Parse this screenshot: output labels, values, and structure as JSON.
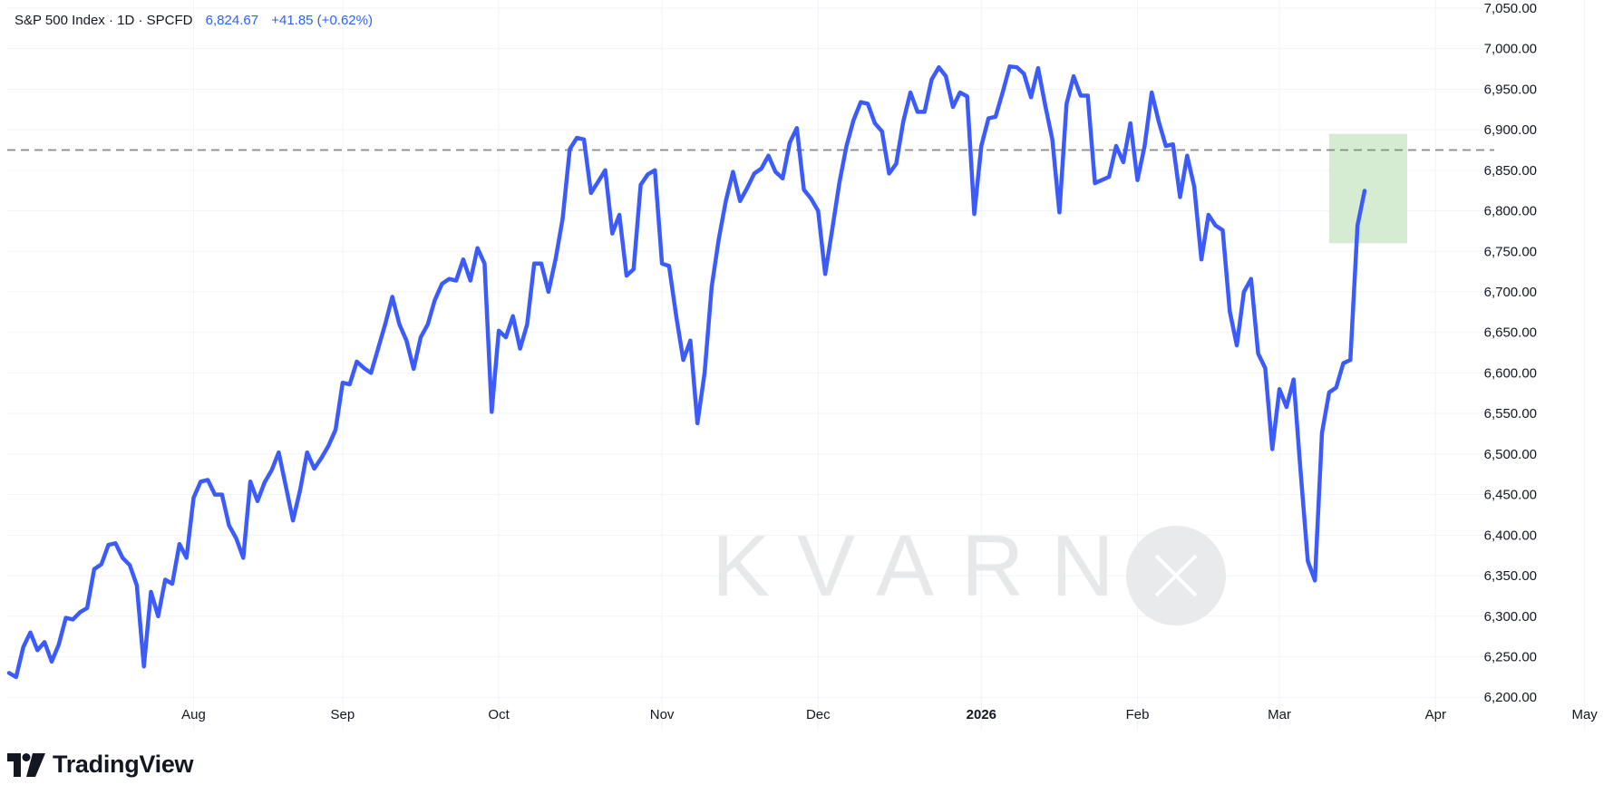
{
  "legend": {
    "symbol": "S&P 500 Index · 1D · SPCFD",
    "price": "6,824.67",
    "change": "+41.85 (+0.62%)"
  },
  "brand": {
    "name": "TradingView",
    "icon": "tradingview-logo-icon"
  },
  "watermark": {
    "text": "KVARN",
    "icon": "kvarn-x-icon"
  },
  "colors": {
    "line": "#3b5bfd",
    "grid": "#f0f3fa",
    "reference": "#8a8a8a",
    "highlight": "#d6ecd2",
    "watermark": "#e6e8ea"
  },
  "chart_data": {
    "type": "line",
    "series": [
      {
        "name": "S&P 500 Index",
        "values": [
          6230,
          6225,
          6262,
          6280,
          6258,
          6268,
          6244,
          6265,
          6298,
          6296,
          6305,
          6310,
          6358,
          6364,
          6388,
          6390,
          6372,
          6363,
          6338,
          6238,
          6330,
          6300,
          6345,
          6340,
          6389,
          6372,
          6446,
          6466,
          6468,
          6450,
          6450,
          6412,
          6396,
          6372,
          6466,
          6442,
          6465,
          6480,
          6502,
          6460,
          6418,
          6455,
          6502,
          6482,
          6495,
          6510,
          6530,
          6588,
          6586,
          6614,
          6606,
          6600,
          6630,
          6660,
          6694,
          6660,
          6640,
          6605,
          6644,
          6660,
          6690,
          6710,
          6716,
          6714,
          6740,
          6714,
          6754,
          6735,
          6552,
          6652,
          6644,
          6670,
          6630,
          6660,
          6735,
          6735,
          6700,
          6740,
          6790,
          6876,
          6890,
          6888,
          6822,
          6836,
          6850,
          6772,
          6795,
          6720,
          6728,
          6832,
          6845,
          6850,
          6735,
          6732,
          6670,
          6616,
          6640,
          6538,
          6600,
          6706,
          6765,
          6812,
          6848,
          6812,
          6828,
          6846,
          6852,
          6868,
          6848,
          6840,
          6884,
          6902,
          6826,
          6815,
          6800,
          6722,
          6778,
          6835,
          6880,
          6912,
          6934,
          6932,
          6908,
          6898,
          6846,
          6858,
          6910,
          6946,
          6922,
          6922,
          6962,
          6977,
          6966,
          6928,
          6946,
          6941,
          6796,
          6880,
          6914,
          6916,
          6946,
          6978,
          6977,
          6969,
          6940,
          6976,
          6930,
          6888,
          6798,
          6932,
          6966,
          6942,
          6942,
          6834,
          6838,
          6842,
          6880,
          6860,
          6908,
          6838,
          6880,
          6946,
          6910,
          6880,
          6882,
          6817,
          6868,
          6830,
          6740,
          6795,
          6782,
          6776,
          6676,
          6634,
          6700,
          6716,
          6624,
          6606,
          6506,
          6580,
          6558,
          6592,
          6476,
          6368,
          6344,
          6526,
          6576,
          6582,
          6612,
          6616,
          6782,
          6824.67
        ]
      }
    ],
    "x_labels": [
      "Aug",
      "Sep",
      "Oct",
      "Nov",
      "Dec",
      "2026",
      "Feb",
      "Mar",
      "Apr",
      "May"
    ],
    "y_ticks": [
      "7,050.00",
      "7,000.00",
      "6,950.00",
      "6,900.00",
      "6,850.00",
      "6,800.00",
      "6,750.00",
      "6,700.00",
      "6,650.00",
      "6,600.00",
      "6,550.00",
      "6,500.00",
      "6,450.00",
      "6,400.00",
      "6,350.00",
      "6,300.00",
      "6,250.00",
      "6,200.00"
    ],
    "ylim": [
      6160,
      7060
    ],
    "reference_line": 6875,
    "highlight_zone": {
      "y_range": [
        6760,
        6895
      ],
      "x_start_index": 186,
      "x_end_index": 197
    },
    "grid": true,
    "title": "",
    "xlabel": "",
    "ylabel": ""
  }
}
